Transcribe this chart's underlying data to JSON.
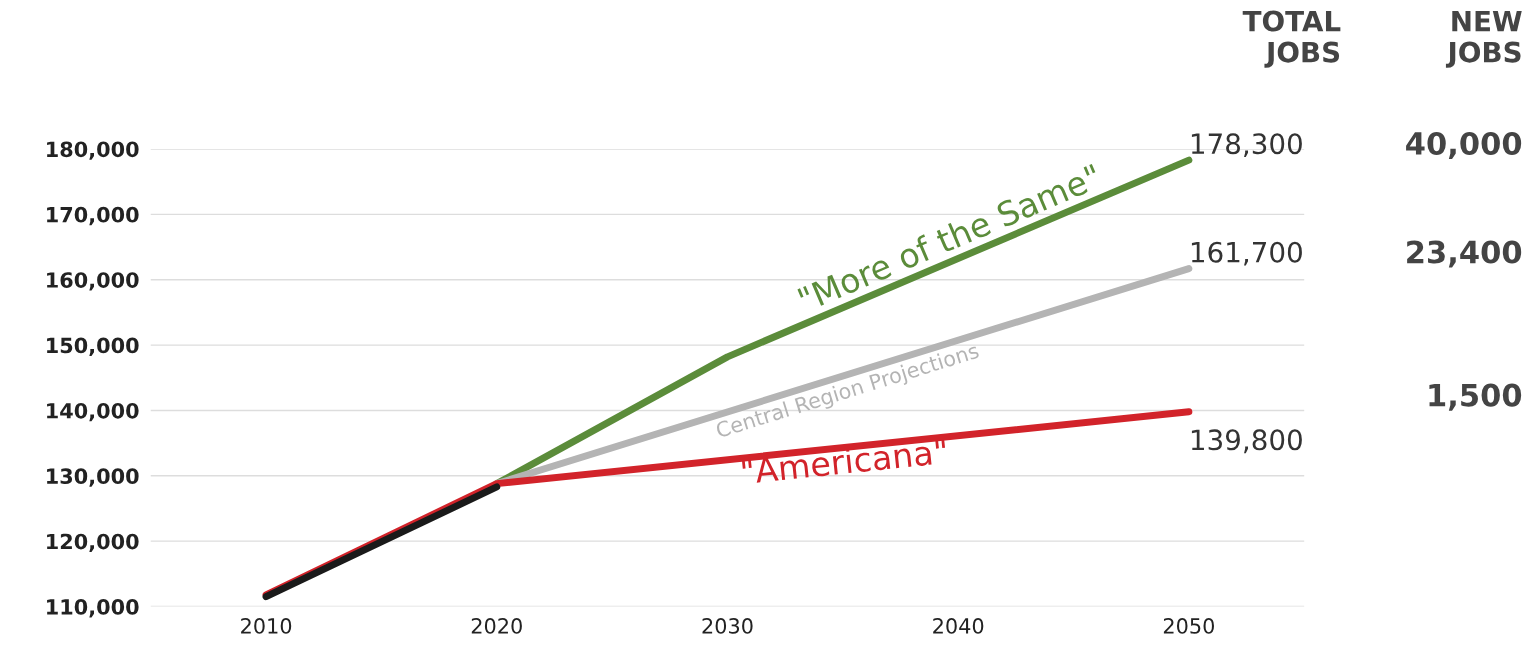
{
  "chart_data": {
    "type": "line",
    "xlim": [
      2005,
      2055
    ],
    "xticks": [
      2010,
      2020,
      2030,
      2040,
      2050
    ],
    "ylim": [
      110000,
      180000
    ],
    "yticks": [
      {
        "value": 110000,
        "label": "110,000"
      },
      {
        "value": 120000,
        "label": "120,000"
      },
      {
        "value": 130000,
        "label": "130,000"
      },
      {
        "value": 140000,
        "label": "140,000"
      },
      {
        "value": 150000,
        "label": "150,000"
      },
      {
        "value": 160000,
        "label": "160,000"
      },
      {
        "value": 170000,
        "label": "170,000"
      },
      {
        "value": 180000,
        "label": "180,000"
      }
    ],
    "grid": "y",
    "marker": "none",
    "line_style": "solid",
    "series": [
      {
        "name": "\"More of the Same\"",
        "color": "#5b8c3a",
        "x": [
          2020,
          2030,
          2050
        ],
        "values": [
          128800,
          148200,
          178300
        ],
        "value_labels": [
          null,
          null,
          "178,300"
        ]
      },
      {
        "name": "Central Region Projections",
        "color": "#b4b4b4",
        "x": [
          2020,
          2050
        ],
        "values": [
          128800,
          161700
        ],
        "value_labels": [
          null,
          "161,700"
        ]
      },
      {
        "color": "#1a1a1a",
        "x": [
          2010,
          2020
        ],
        "values": [
          111500,
          128300
        ]
      },
      {
        "name": "\"Americana\"",
        "color": "#d2232a",
        "x": [
          2010,
          2020,
          2050
        ],
        "values": [
          111800,
          128800,
          139800
        ],
        "value_labels": [
          null,
          null,
          "139,800"
        ]
      }
    ],
    "annotations": [
      "TOTAL\nJOBS",
      "NEW\nJOBS",
      "40,000",
      "23,400",
      "1,500"
    ]
  }
}
